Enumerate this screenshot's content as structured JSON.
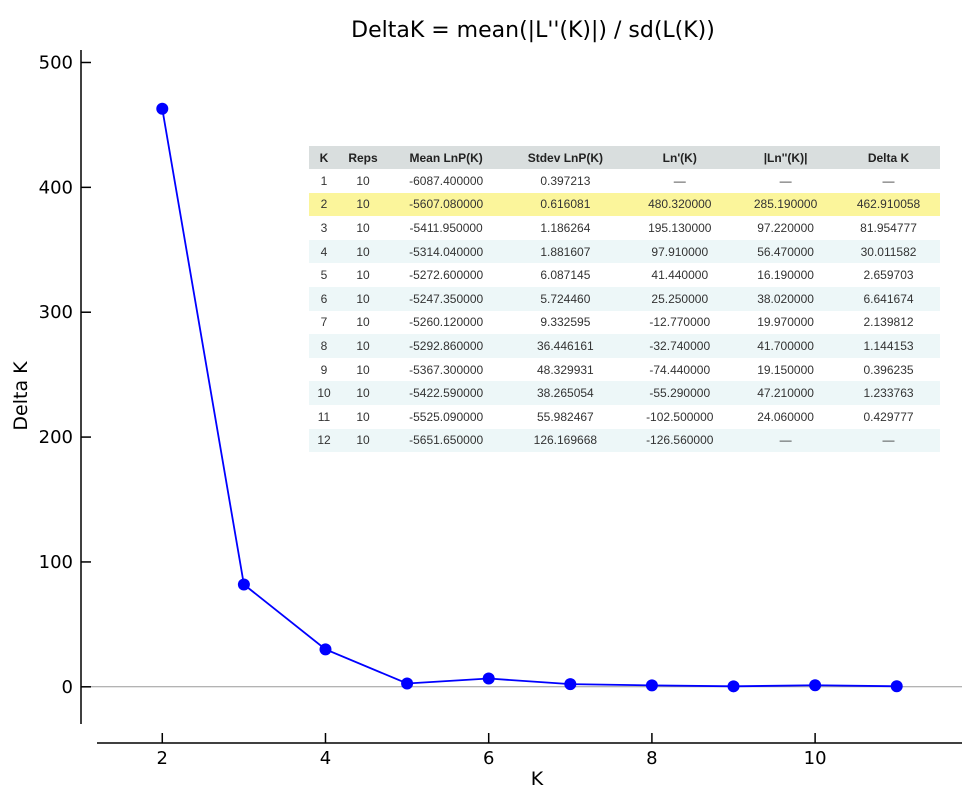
{
  "chart_data": {
    "type": "line",
    "title": "DeltaK = mean(|L''(K)|) / sd(L(K))",
    "xlabel": "K",
    "ylabel": "Delta K",
    "xlim": [
      1.2,
      11.8
    ],
    "ylim": [
      -45,
      510
    ],
    "x_ticks": [
      "2",
      "4",
      "6",
      "8",
      "10"
    ],
    "y_ticks": [
      "0",
      "100",
      "200",
      "300",
      "400",
      "500"
    ],
    "baseline_y": 0,
    "series": [
      {
        "x": [
          2,
          3,
          4,
          5,
          6,
          7,
          8,
          9,
          10,
          11
        ],
        "values": [
          462.910058,
          81.954777,
          30.011582,
          2.659703,
          6.641674,
          2.139812,
          1.144153,
          0.396235,
          1.233763,
          0.429777
        ],
        "color": "#0000ff"
      }
    ]
  },
  "table": {
    "headers": [
      "K",
      "Reps",
      "Mean LnP(K)",
      "Stdev LnP(K)",
      "Ln'(K)",
      "|Ln''(K)|",
      "Delta K"
    ],
    "highlight_row": 1,
    "rows": [
      [
        "1",
        "10",
        "-6087.400000",
        "0.397213",
        "—",
        "—",
        "—"
      ],
      [
        "2",
        "10",
        "-5607.080000",
        "0.616081",
        "480.320000",
        "285.190000",
        "462.910058"
      ],
      [
        "3",
        "10",
        "-5411.950000",
        "1.186264",
        "195.130000",
        "97.220000",
        "81.954777"
      ],
      [
        "4",
        "10",
        "-5314.040000",
        "1.881607",
        "97.910000",
        "56.470000",
        "30.011582"
      ],
      [
        "5",
        "10",
        "-5272.600000",
        "6.087145",
        "41.440000",
        "16.190000",
        "2.659703"
      ],
      [
        "6",
        "10",
        "-5247.350000",
        "5.724460",
        "25.250000",
        "38.020000",
        "6.641674"
      ],
      [
        "7",
        "10",
        "-5260.120000",
        "9.332595",
        "-12.770000",
        "19.970000",
        "2.139812"
      ],
      [
        "8",
        "10",
        "-5292.860000",
        "36.446161",
        "-32.740000",
        "41.700000",
        "1.144153"
      ],
      [
        "9",
        "10",
        "-5367.300000",
        "48.329931",
        "-74.440000",
        "19.150000",
        "0.396235"
      ],
      [
        "10",
        "10",
        "-5422.590000",
        "38.265054",
        "-55.290000",
        "47.210000",
        "1.233763"
      ],
      [
        "11",
        "10",
        "-5525.090000",
        "55.982467",
        "-102.500000",
        "24.060000",
        "0.429777"
      ],
      [
        "12",
        "10",
        "-5651.650000",
        "126.169668",
        "-126.560000",
        "—",
        "—"
      ]
    ]
  }
}
